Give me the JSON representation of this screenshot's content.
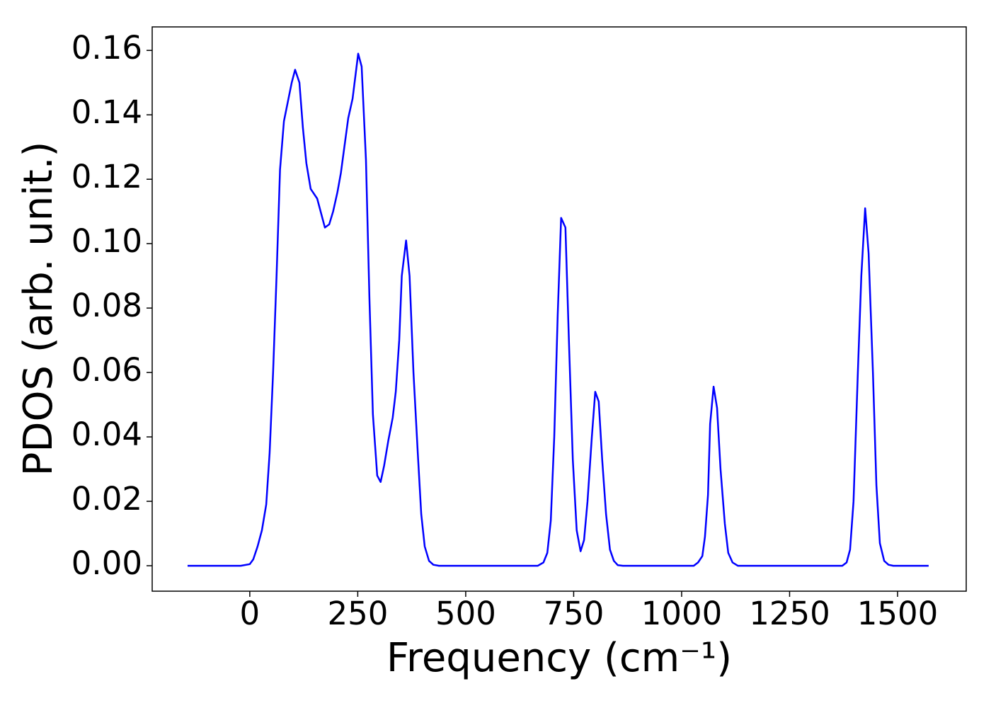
{
  "chart_data": {
    "type": "line",
    "xlabel": "Frequency (cm⁻¹)",
    "ylabel": "PDOS (arb. unit.)",
    "xlim": [
      -226,
      1659
    ],
    "ylim": [
      -0.0079,
      0.1673
    ],
    "xticks": [
      0,
      250,
      500,
      750,
      1000,
      1250,
      1500
    ],
    "yticks": [
      {
        "value": 0,
        "label": "0.00"
      },
      {
        "value": 0.02,
        "label": "0.02"
      },
      {
        "value": 0.04,
        "label": "0.04"
      },
      {
        "value": 0.06,
        "label": "0.06"
      },
      {
        "value": 0.08,
        "label": "0.08"
      },
      {
        "value": 0.1,
        "label": "0.10"
      },
      {
        "value": 0.12,
        "label": "0.12"
      },
      {
        "value": 0.14,
        "label": "0.14"
      },
      {
        "value": 0.16,
        "label": "0.16"
      }
    ],
    "x": [
      -144,
      -21,
      0,
      8,
      18,
      28,
      38,
      46,
      54,
      62,
      70,
      79,
      97,
      105,
      115,
      123,
      131,
      141,
      156,
      174,
      184,
      193,
      203,
      211,
      221,
      228,
      238,
      251,
      259,
      269,
      277,
      285,
      295,
      303,
      311,
      321,
      331,
      338,
      346,
      352,
      362,
      370,
      379,
      389,
      397,
      405,
      415,
      425,
      438,
      667,
      680,
      689,
      697,
      705,
      713,
      721,
      731,
      739,
      748,
      757,
      766,
      774,
      782,
      792,
      800,
      808,
      816,
      825,
      834,
      843,
      852,
      864,
      1028,
      1038,
      1048,
      1054,
      1061,
      1066,
      1074,
      1082,
      1090,
      1100,
      1108,
      1118,
      1130,
      1372,
      1382,
      1390,
      1398,
      1408,
      1416,
      1425,
      1433,
      1443,
      1451,
      1459,
      1469,
      1479,
      1490,
      1572
    ],
    "series": [
      {
        "color": "#0000ff",
        "values": [
          0,
          0,
          0.0005,
          0.002,
          0.006,
          0.011,
          0.019,
          0.035,
          0.06,
          0.09,
          0.123,
          0.138,
          0.15,
          0.154,
          0.15,
          0.136,
          0.125,
          0.117,
          0.114,
          0.105,
          0.106,
          0.11,
          0.116,
          0.122,
          0.132,
          0.139,
          0.145,
          0.159,
          0.155,
          0.126,
          0.083,
          0.047,
          0.028,
          0.026,
          0.031,
          0.039,
          0.046,
          0.054,
          0.07,
          0.09,
          0.101,
          0.09,
          0.06,
          0.035,
          0.016,
          0.006,
          0.0015,
          0.0003,
          0,
          0,
          0.001,
          0.004,
          0.014,
          0.04,
          0.078,
          0.108,
          0.105,
          0.07,
          0.033,
          0.011,
          0.0045,
          0.008,
          0.02,
          0.04,
          0.054,
          0.051,
          0.033,
          0.016,
          0.005,
          0.0015,
          0.0002,
          0,
          0,
          0.001,
          0.003,
          0.009,
          0.022,
          0.044,
          0.0556,
          0.049,
          0.03,
          0.013,
          0.004,
          0.001,
          0,
          0,
          0.001,
          0.005,
          0.02,
          0.06,
          0.09,
          0.111,
          0.097,
          0.06,
          0.025,
          0.007,
          0.0015,
          0.0003,
          0,
          0
        ]
      }
    ]
  }
}
